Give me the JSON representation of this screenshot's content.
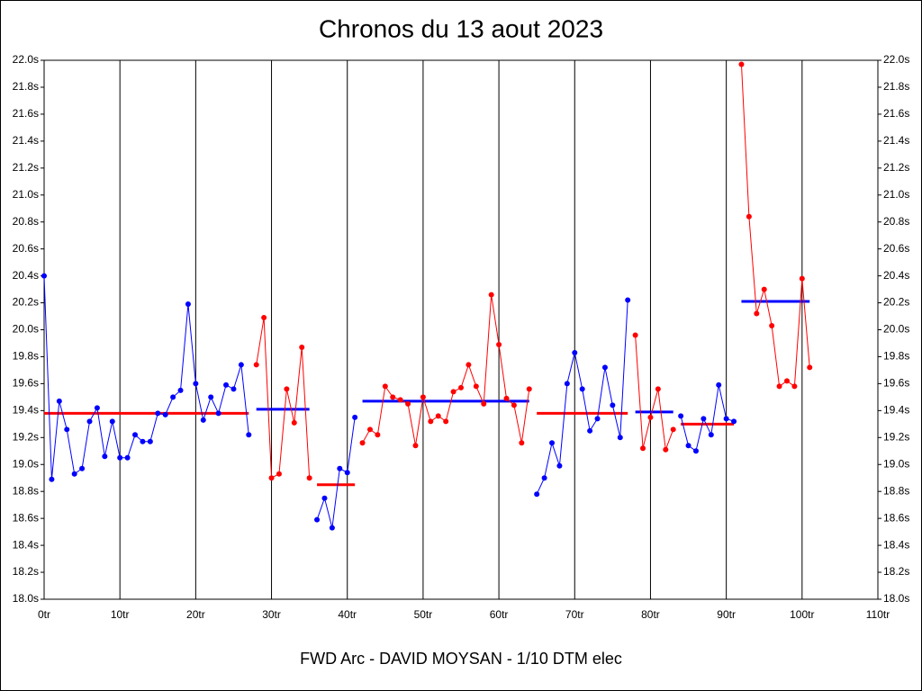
{
  "chart_data": {
    "type": "line",
    "title": "Chronos du 13 aout 2023",
    "xlabel": "FWD Arc - DAVID MOYSAN - 1/10 DTM elec",
    "xlim": [
      0,
      110
    ],
    "xticks": [
      {
        "value": 0,
        "label": "0tr"
      },
      {
        "value": 10,
        "label": "10tr"
      },
      {
        "value": 20,
        "label": "20tr"
      },
      {
        "value": 30,
        "label": "30tr"
      },
      {
        "value": 40,
        "label": "40tr"
      },
      {
        "value": 50,
        "label": "50tr"
      },
      {
        "value": 60,
        "label": "60tr"
      },
      {
        "value": 70,
        "label": "70tr"
      },
      {
        "value": 80,
        "label": "80tr"
      },
      {
        "value": 90,
        "label": "90tr"
      },
      {
        "value": 100,
        "label": "100tr"
      },
      {
        "value": 110,
        "label": "110tr"
      }
    ],
    "ylim": [
      18.0,
      22.0
    ],
    "yticks": [
      {
        "value": 18.0,
        "label": "18.0s"
      },
      {
        "value": 18.2,
        "label": "18.2s"
      },
      {
        "value": 18.4,
        "label": "18.4s"
      },
      {
        "value": 18.6,
        "label": "18.6s"
      },
      {
        "value": 18.8,
        "label": "18.8s"
      },
      {
        "value": 19.0,
        "label": "19.0s"
      },
      {
        "value": 19.2,
        "label": "19.2s"
      },
      {
        "value": 19.4,
        "label": "19.4s"
      },
      {
        "value": 19.6,
        "label": "19.6s"
      },
      {
        "value": 19.8,
        "label": "19.8s"
      },
      {
        "value": 20.0,
        "label": "20.0s"
      },
      {
        "value": 20.2,
        "label": "20.2s"
      },
      {
        "value": 20.4,
        "label": "20.4s"
      },
      {
        "value": 20.6,
        "label": "20.6s"
      },
      {
        "value": 20.8,
        "label": "20.8s"
      },
      {
        "value": 21.0,
        "label": "21.0s"
      },
      {
        "value": 21.2,
        "label": "21.2s"
      },
      {
        "value": 21.4,
        "label": "21.4s"
      },
      {
        "value": 21.6,
        "label": "21.6s"
      },
      {
        "value": 21.8,
        "label": "21.8s"
      },
      {
        "value": 22.0,
        "label": "22.0s"
      }
    ],
    "grid": "x",
    "series": [
      {
        "color": "#0000ff",
        "x": [
          0,
          1,
          2,
          3,
          4,
          5,
          6,
          7,
          8,
          9,
          10,
          11,
          12,
          13,
          14,
          15,
          16,
          17,
          18,
          19,
          20,
          21,
          22,
          23,
          24,
          25,
          26,
          27
        ],
        "values": [
          20.4,
          18.89,
          19.47,
          19.26,
          18.93,
          18.97,
          19.32,
          19.42,
          19.06,
          19.32,
          19.05,
          19.05,
          19.22,
          19.17,
          19.17,
          19.38,
          19.37,
          19.5,
          19.55,
          20.19,
          19.6,
          19.33,
          19.5,
          19.38,
          19.59,
          19.56,
          19.74,
          19.22
        ]
      },
      {
        "color": "#ff0000",
        "x": [
          28,
          29,
          30,
          31,
          32,
          33,
          34,
          35
        ],
        "values": [
          19.74,
          20.09,
          18.9,
          18.93,
          19.56,
          19.31,
          19.87,
          18.9
        ]
      },
      {
        "color": "#0000ff",
        "x": [
          36,
          37,
          38,
          39,
          40,
          41
        ],
        "values": [
          18.59,
          18.75,
          18.53,
          18.97,
          18.94,
          19.35
        ]
      },
      {
        "color": "#ff0000",
        "x": [
          42,
          43,
          44,
          45,
          46,
          47,
          48,
          49,
          50,
          51,
          52,
          53,
          54,
          55,
          56,
          57,
          58,
          59,
          60,
          61,
          62,
          63,
          64
        ],
        "values": [
          19.16,
          19.26,
          19.22,
          19.58,
          19.5,
          19.48,
          19.45,
          19.14,
          19.5,
          19.32,
          19.36,
          19.32,
          19.54,
          19.57,
          19.74,
          19.58,
          19.45,
          20.26,
          19.89,
          19.49,
          19.44,
          19.16,
          19.56
        ]
      },
      {
        "color": "#0000ff",
        "x": [
          65,
          66,
          67,
          68,
          69,
          70,
          71,
          72,
          73,
          74,
          75,
          76,
          77
        ],
        "values": [
          18.78,
          18.9,
          19.16,
          18.99,
          19.6,
          19.83,
          19.56,
          19.25,
          19.34,
          19.72,
          19.44,
          19.2,
          20.22
        ]
      },
      {
        "color": "#ff0000",
        "x": [
          78,
          79,
          80,
          81,
          82,
          83
        ],
        "values": [
          19.96,
          19.12,
          19.35,
          19.56,
          19.11,
          19.26
        ]
      },
      {
        "color": "#0000ff",
        "x": [
          84,
          85,
          86,
          87,
          88,
          89,
          90,
          91
        ],
        "values": [
          19.36,
          19.14,
          19.1,
          19.34,
          19.22,
          19.59,
          19.34,
          19.32
        ]
      },
      {
        "color": "#ff0000",
        "x": [
          92,
          93,
          94,
          95,
          96,
          97,
          98,
          99,
          100,
          101
        ],
        "values": [
          21.97,
          20.84,
          20.12,
          20.3,
          20.03,
          19.58,
          19.62,
          19.58,
          20.38,
          19.72
        ]
      }
    ],
    "averages": [
      {
        "color": "#ff0000",
        "x": [
          0,
          27
        ],
        "value": 19.38
      },
      {
        "color": "#0000ff",
        "x": [
          28,
          35
        ],
        "value": 19.41
      },
      {
        "color": "#ff0000",
        "x": [
          36,
          41
        ],
        "value": 18.85
      },
      {
        "color": "#0000ff",
        "x": [
          42,
          64
        ],
        "value": 19.47
      },
      {
        "color": "#ff0000",
        "x": [
          65,
          77
        ],
        "value": 19.38
      },
      {
        "color": "#0000ff",
        "x": [
          78,
          83
        ],
        "value": 19.39
      },
      {
        "color": "#ff0000",
        "x": [
          84,
          91
        ],
        "value": 19.3
      },
      {
        "color": "#0000ff",
        "x": [
          92,
          101
        ],
        "value": 20.21
      }
    ]
  }
}
